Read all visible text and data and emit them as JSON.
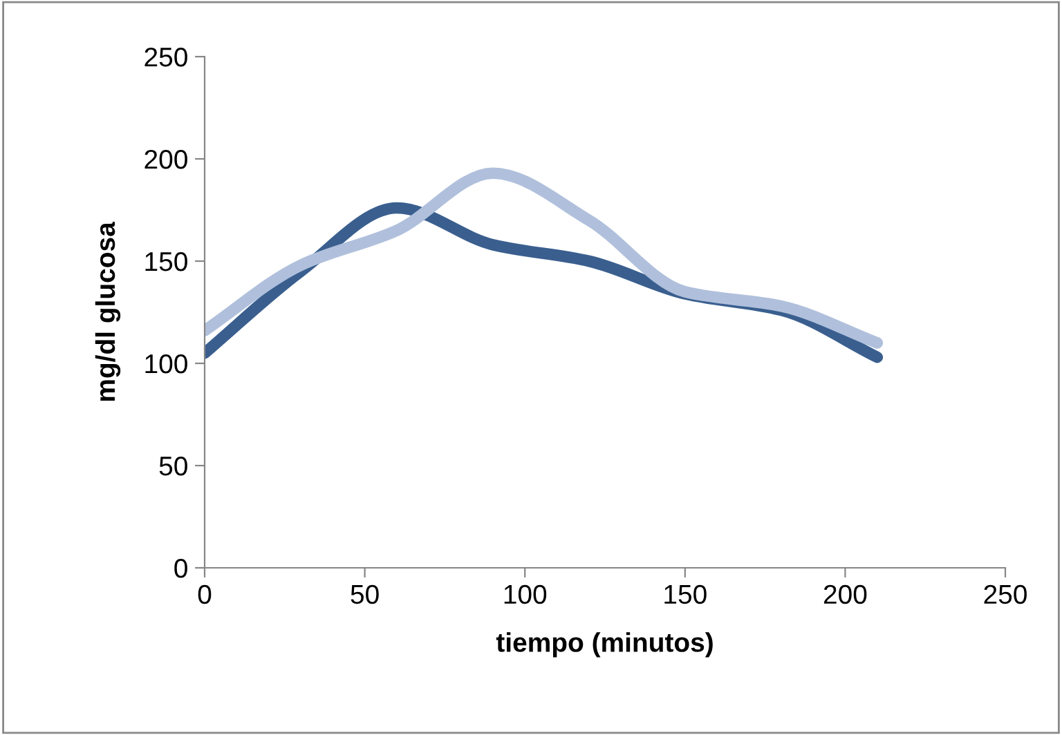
{
  "chart_data": {
    "type": "line",
    "xlabel": "tiempo (minutos)",
    "ylabel": "mg/dl glucosa",
    "x": [
      0,
      30,
      60,
      90,
      120,
      150,
      180,
      210
    ],
    "series": [
      {
        "color": "#3a5f8f",
        "values": [
          105,
          145,
          176,
          158,
          150,
          134,
          126,
          103
        ]
      },
      {
        "color": "#b0c0dc",
        "values": [
          116,
          148,
          165,
          193,
          170,
          135,
          128,
          110
        ]
      }
    ],
    "xlim": [
      0,
      250
    ],
    "xticks": [
      0,
      50,
      100,
      150,
      200,
      250
    ],
    "ylim": [
      0,
      250
    ],
    "yticks": [
      0,
      50,
      100,
      150,
      200,
      250
    ],
    "grid": false,
    "legend": false,
    "marker": "none",
    "line_style": "solid"
  }
}
